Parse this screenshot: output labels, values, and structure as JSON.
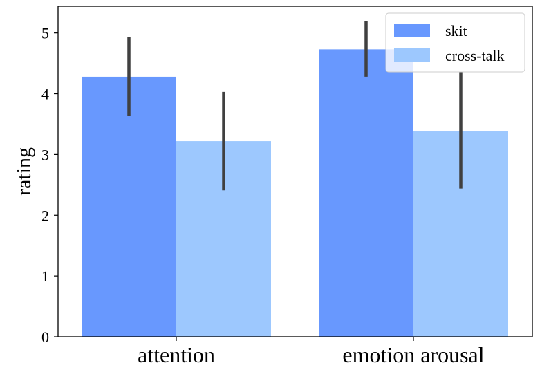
{
  "chart_data": {
    "type": "bar",
    "title": "",
    "xlabel": "",
    "ylabel": "rating",
    "categories": [
      "attention",
      "emotion arousal"
    ],
    "series": [
      {
        "name": "skit",
        "color": "#6898fe",
        "values": [
          4.28,
          4.73
        ],
        "err_low": [
          3.63,
          4.28
        ],
        "err_high": [
          4.93,
          5.19
        ]
      },
      {
        "name": "cross-talk",
        "color": "#9dc8fe",
        "values": [
          3.22,
          3.38
        ],
        "err_low": [
          2.41,
          2.44
        ],
        "err_high": [
          4.03,
          4.36
        ]
      }
    ],
    "ylim": [
      0,
      5.44
    ],
    "yticks": [
      0,
      1,
      2,
      3,
      4,
      5
    ],
    "grid": false,
    "legend": "top-right",
    "error_bar_color": "#404040"
  }
}
